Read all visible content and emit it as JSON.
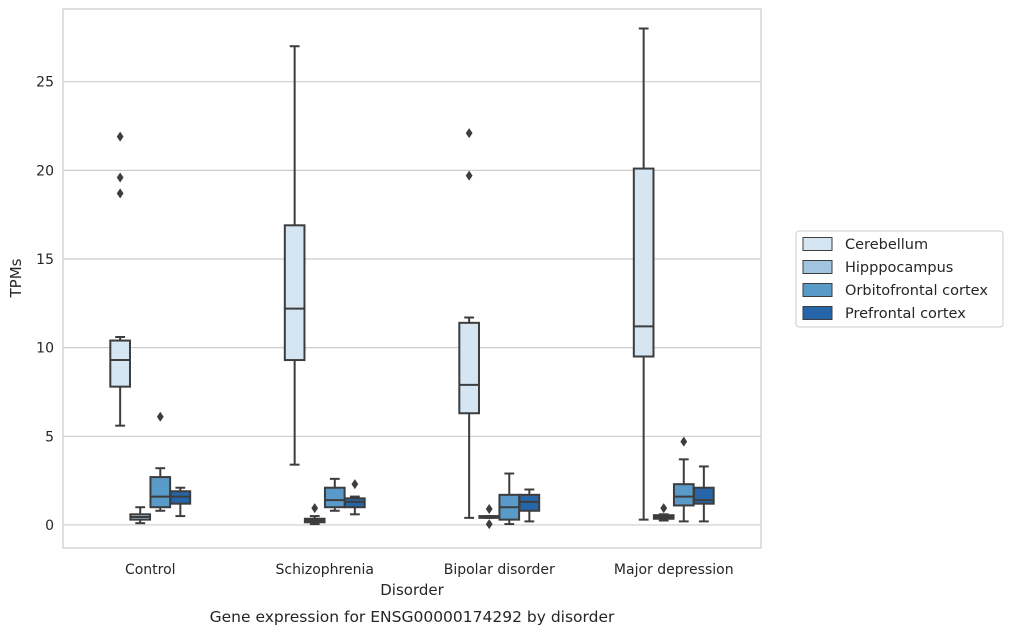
{
  "caption": "Gene expression for ENSG00000174292 by disorder",
  "chart_data": {
    "type": "box",
    "xlabel": "Disorder",
    "ylabel": "TPMs",
    "ylim": [
      -1.3,
      29.1
    ],
    "yticks": [
      0,
      5,
      10,
      15,
      20,
      25
    ],
    "grid": "horizontal",
    "legend_position": "right",
    "categories": [
      "Control",
      "Schizophrenia",
      "Bipolar disorder",
      "Major depression"
    ],
    "series": [
      {
        "name": "Cerebellum",
        "color": "#d6e5f2",
        "boxes": [
          {
            "whislo": 5.6,
            "q1": 7.8,
            "med": 9.3,
            "q3": 10.4,
            "whishi": 10.6,
            "fliers": [
              18.7,
              19.6,
              21.9
            ]
          },
          {
            "whislo": 3.4,
            "q1": 9.3,
            "med": 12.2,
            "q3": 16.9,
            "whishi": 27.0,
            "fliers": []
          },
          {
            "whislo": 0.4,
            "q1": 6.3,
            "med": 7.9,
            "q3": 11.4,
            "whishi": 11.7,
            "fliers": [
              19.7,
              22.1
            ]
          },
          {
            "whislo": 0.3,
            "q1": 9.5,
            "med": 11.2,
            "q3": 20.1,
            "whishi": 28.0,
            "fliers": []
          }
        ]
      },
      {
        "name": "Hipppocampus",
        "color": "#a2c5df",
        "boxes": [
          {
            "whislo": 0.1,
            "q1": 0.3,
            "med": 0.45,
            "q3": 0.6,
            "whishi": 1.0,
            "fliers": []
          },
          {
            "whislo": 0.05,
            "q1": 0.15,
            "med": 0.25,
            "q3": 0.35,
            "whishi": 0.5,
            "fliers": [
              0.95
            ]
          },
          {
            "whislo": 0.4,
            "q1": 0.4,
            "med": 0.45,
            "q3": 0.5,
            "whishi": 0.5,
            "fliers": [
              0.9,
              0.05
            ]
          },
          {
            "whislo": 0.25,
            "q1": 0.35,
            "med": 0.45,
            "q3": 0.55,
            "whishi": 0.6,
            "fliers": [
              0.95
            ]
          }
        ]
      },
      {
        "name": "Orbitofrontal cortex",
        "color": "#5a9ac8",
        "boxes": [
          {
            "whislo": 0.8,
            "q1": 1.0,
            "med": 1.6,
            "q3": 2.7,
            "whishi": 3.2,
            "fliers": [
              6.1
            ]
          },
          {
            "whislo": 0.8,
            "q1": 1.0,
            "med": 1.4,
            "q3": 2.1,
            "whishi": 2.6,
            "fliers": []
          },
          {
            "whislo": 0.05,
            "q1": 0.3,
            "med": 1.0,
            "q3": 1.7,
            "whishi": 2.9,
            "fliers": []
          },
          {
            "whislo": 0.2,
            "q1": 1.1,
            "med": 1.6,
            "q3": 2.3,
            "whishi": 3.7,
            "fliers": [
              4.7
            ]
          }
        ]
      },
      {
        "name": "Prefrontal cortex",
        "color": "#2666a8",
        "boxes": [
          {
            "whislo": 0.5,
            "q1": 1.2,
            "med": 1.6,
            "q3": 1.9,
            "whishi": 2.1,
            "fliers": []
          },
          {
            "whislo": 0.6,
            "q1": 1.0,
            "med": 1.3,
            "q3": 1.5,
            "whishi": 1.6,
            "fliers": [
              2.3
            ]
          },
          {
            "whislo": 0.2,
            "q1": 0.8,
            "med": 1.3,
            "q3": 1.7,
            "whishi": 2.0,
            "fliers": []
          },
          {
            "whislo": 0.2,
            "q1": 1.2,
            "med": 1.4,
            "q3": 2.1,
            "whishi": 3.3,
            "fliers": []
          }
        ]
      }
    ]
  }
}
